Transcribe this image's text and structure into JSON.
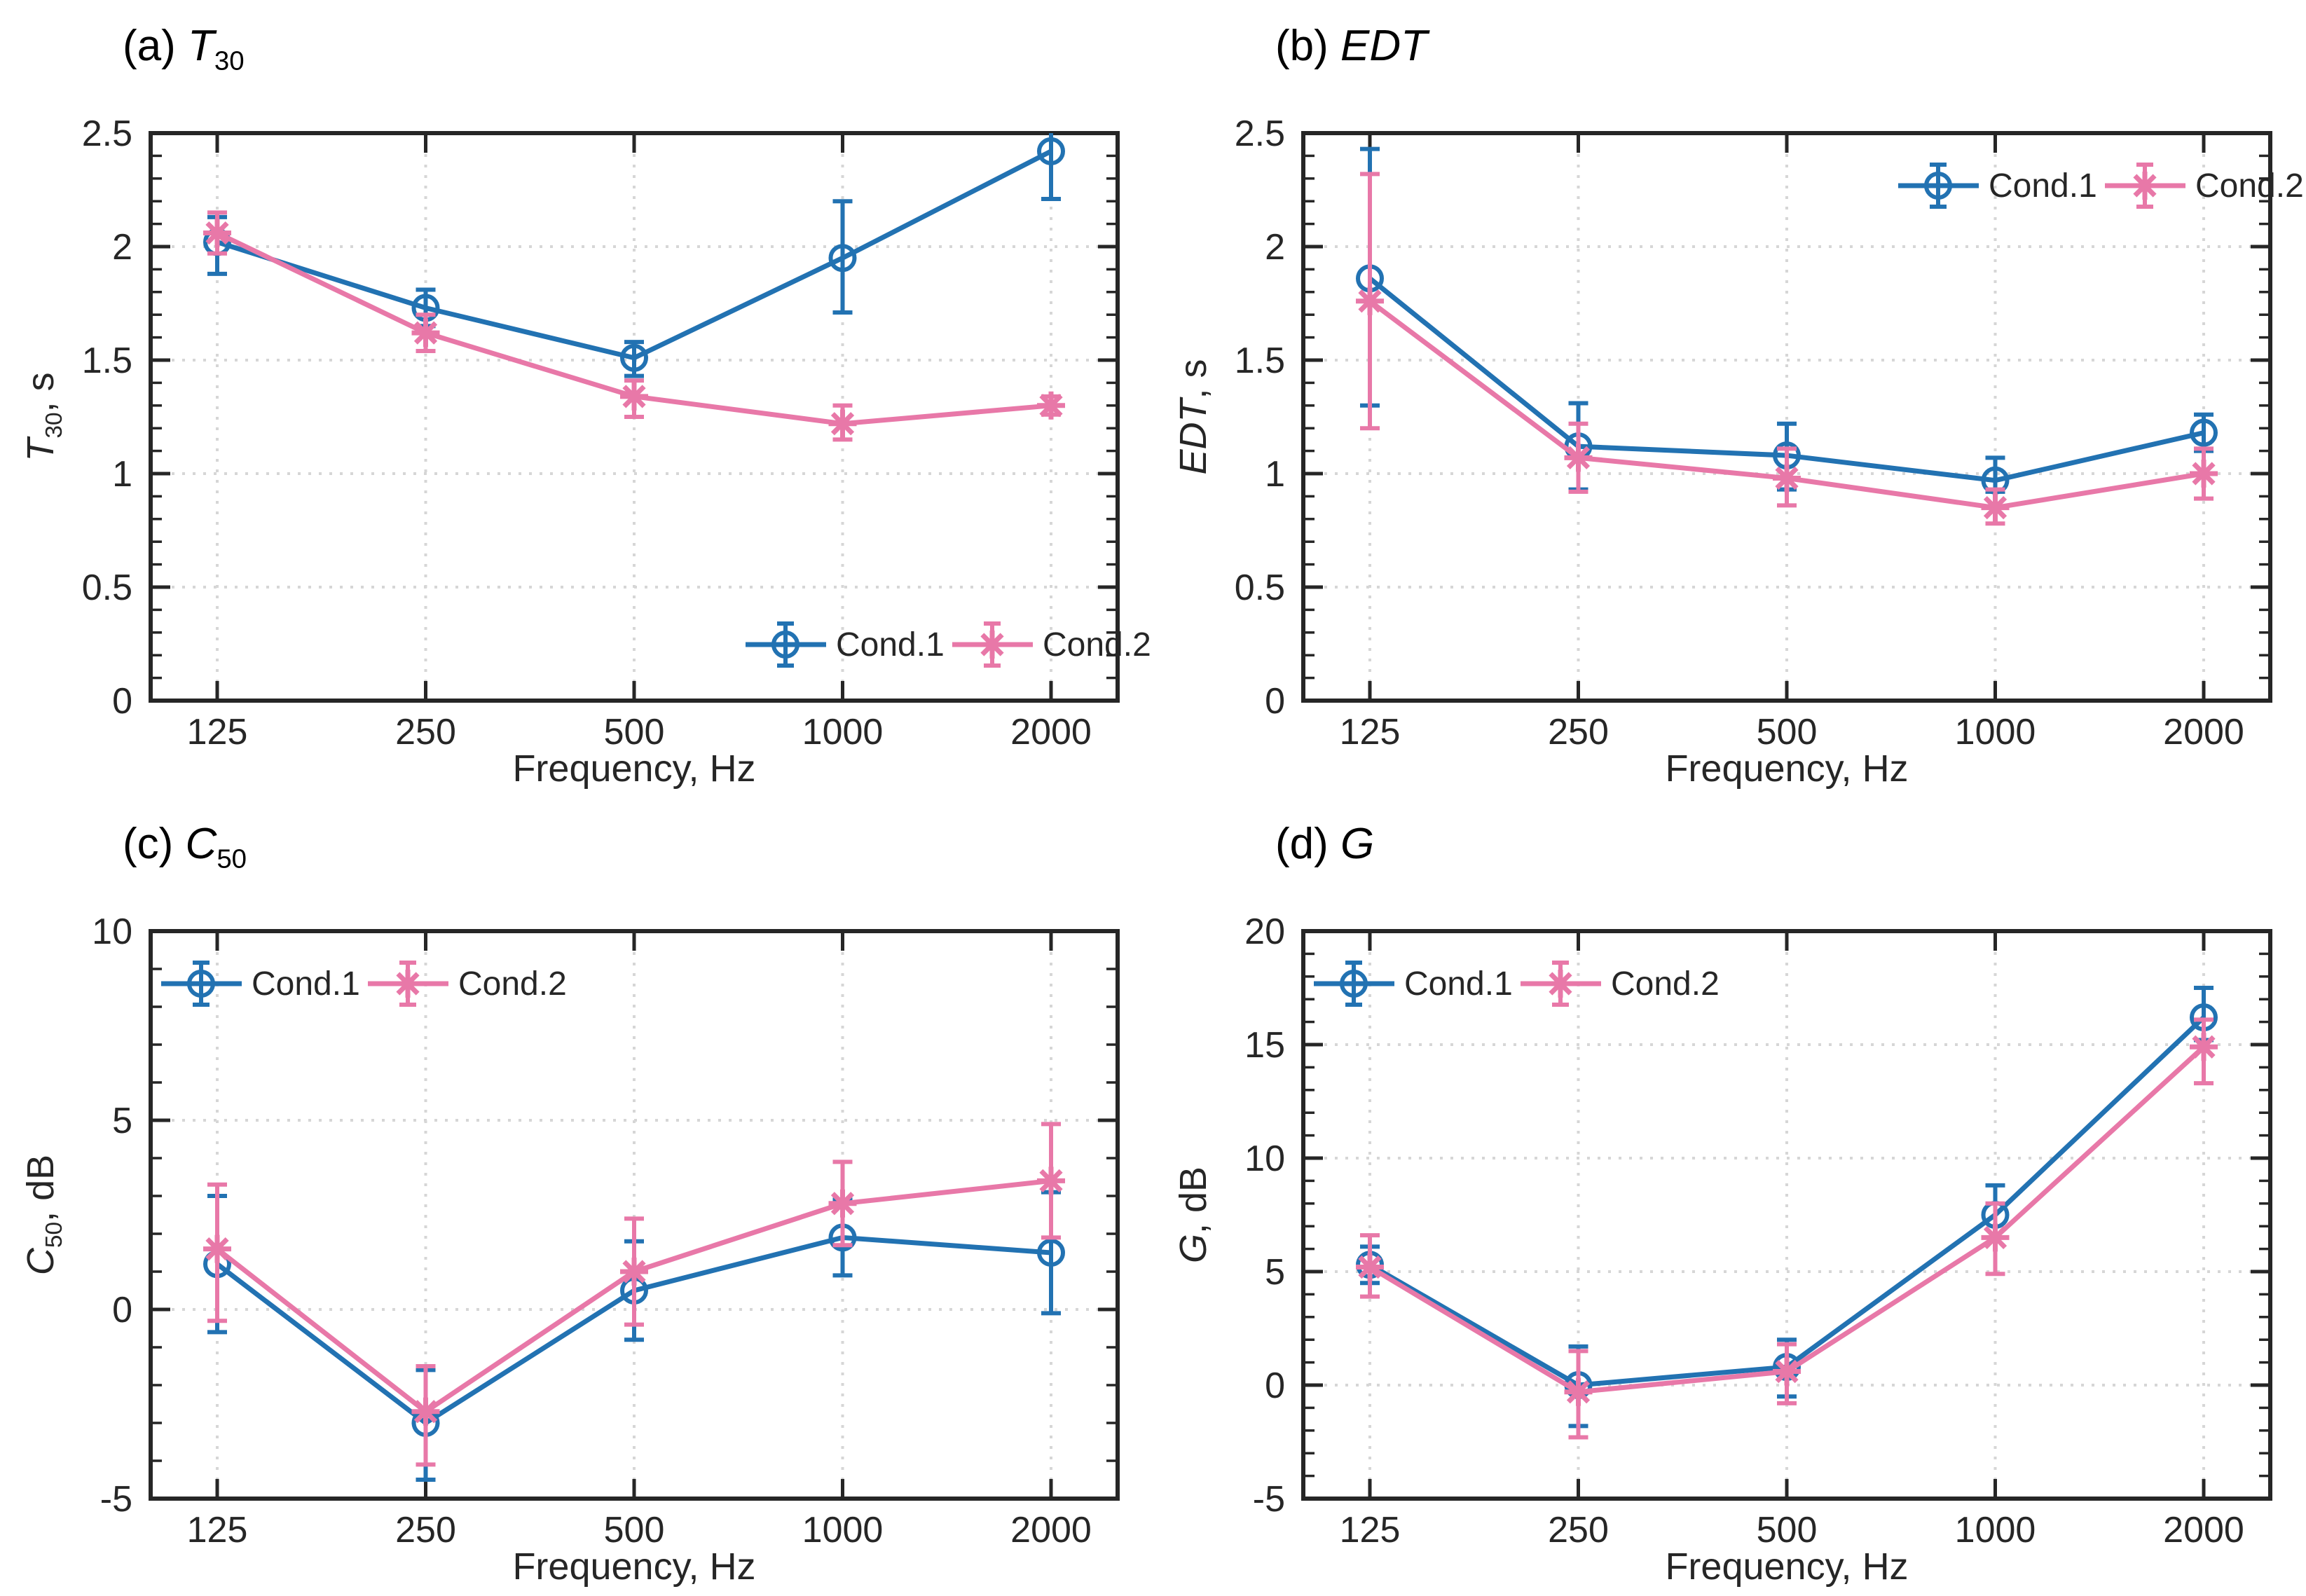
{
  "figure": {
    "colors": {
      "cond1": "#2272b2",
      "cond2": "#e878a8",
      "axis": "#262626",
      "grid": "#d6d6d6",
      "text": "#262626"
    },
    "frequency_ticks": [
      "125",
      "250",
      "500",
      "1000",
      "2000"
    ]
  },
  "chart_data": [
    {
      "id": "a",
      "type": "line",
      "title": {
        "prefix": "(a) ",
        "symbol": "T",
        "subscript": "30"
      },
      "ylabel": {
        "symbol": "T",
        "subscript": "30",
        "unit": ", s"
      },
      "xlabel": "Frequency, Hz",
      "categories": [
        "125",
        "250",
        "500",
        "1000",
        "2000"
      ],
      "ylim": [
        0,
        2.5
      ],
      "yticks": [
        0,
        0.5,
        1,
        1.5,
        2,
        2.5
      ],
      "yminor": 0.1,
      "grid": "dotted",
      "legend_pos": "bottom-right",
      "series": [
        {
          "name": "Cond.1",
          "marker": "circle",
          "color": "#2272b2",
          "values": [
            2.02,
            1.73,
            1.51,
            1.95,
            2.42
          ],
          "err_lo": [
            1.88,
            1.65,
            1.43,
            1.71,
            2.21
          ],
          "err_hi": [
            2.13,
            1.81,
            1.58,
            2.2,
            2.52
          ]
        },
        {
          "name": "Cond.2",
          "marker": "asterisk",
          "color": "#e878a8",
          "values": [
            2.06,
            1.62,
            1.34,
            1.22,
            1.3
          ],
          "err_lo": [
            1.97,
            1.54,
            1.25,
            1.15,
            1.26
          ],
          "err_hi": [
            2.15,
            1.7,
            1.41,
            1.3,
            1.34
          ]
        }
      ]
    },
    {
      "id": "b",
      "type": "line",
      "title": {
        "prefix": "(b) ",
        "symbol": "EDT",
        "subscript": ""
      },
      "ylabel": {
        "symbol": "EDT",
        "subscript": "",
        "unit": ", s"
      },
      "xlabel": "Frequency, Hz",
      "categories": [
        "125",
        "250",
        "500",
        "1000",
        "2000"
      ],
      "ylim": [
        0,
        2.5
      ],
      "yticks": [
        0,
        0.5,
        1,
        1.5,
        2,
        2.5
      ],
      "yminor": 0.1,
      "grid": "dotted",
      "legend_pos": "top-right",
      "series": [
        {
          "name": "Cond.1",
          "marker": "circle",
          "color": "#2272b2",
          "values": [
            1.86,
            1.12,
            1.08,
            0.97,
            1.18
          ],
          "err_lo": [
            1.3,
            0.93,
            0.93,
            0.92,
            1.1
          ],
          "err_hi": [
            2.43,
            1.31,
            1.22,
            1.07,
            1.26
          ]
        },
        {
          "name": "Cond.2",
          "marker": "asterisk",
          "color": "#e878a8",
          "values": [
            1.76,
            1.07,
            0.98,
            0.85,
            1.0
          ],
          "err_lo": [
            1.2,
            0.92,
            0.86,
            0.78,
            0.89
          ],
          "err_hi": [
            2.32,
            1.22,
            1.11,
            0.93,
            1.11
          ]
        }
      ]
    },
    {
      "id": "c",
      "type": "line",
      "title": {
        "prefix": "(c) ",
        "symbol": "C",
        "subscript": "50"
      },
      "ylabel": {
        "symbol": "C",
        "subscript": "50",
        "unit": ", dB"
      },
      "xlabel": "Frequency, Hz",
      "categories": [
        "125",
        "250",
        "500",
        "1000",
        "2000"
      ],
      "ylim": [
        -5,
        10
      ],
      "yticks": [
        -5,
        0,
        5,
        10
      ],
      "yminor": 1,
      "grid": "dotted",
      "legend_pos": "top-left",
      "series": [
        {
          "name": "Cond.1",
          "marker": "circle",
          "color": "#2272b2",
          "values": [
            1.2,
            -3.0,
            0.5,
            1.9,
            1.5
          ],
          "err_lo": [
            -0.6,
            -4.5,
            -0.8,
            0.9,
            -0.1
          ],
          "err_hi": [
            3.0,
            -1.6,
            1.8,
            2.9,
            3.1
          ]
        },
        {
          "name": "Cond.2",
          "marker": "asterisk",
          "color": "#e878a8",
          "values": [
            1.6,
            -2.7,
            1.0,
            2.8,
            3.4
          ],
          "err_lo": [
            -0.3,
            -4.1,
            -0.4,
            1.7,
            1.9
          ],
          "err_hi": [
            3.3,
            -1.5,
            2.4,
            3.9,
            4.9
          ]
        }
      ]
    },
    {
      "id": "d",
      "type": "line",
      "title": {
        "prefix": "(d) ",
        "symbol": "G",
        "subscript": ""
      },
      "ylabel": {
        "symbol": "G",
        "subscript": "",
        "unit": ", dB"
      },
      "xlabel": "Frequency, Hz",
      "categories": [
        "125",
        "250",
        "500",
        "1000",
        "2000"
      ],
      "ylim": [
        -5,
        20
      ],
      "yticks": [
        -5,
        0,
        5,
        10,
        15,
        20
      ],
      "yminor": 1,
      "grid": "dotted",
      "legend_pos": "top-left",
      "series": [
        {
          "name": "Cond.1",
          "marker": "circle",
          "color": "#2272b2",
          "values": [
            5.3,
            0.0,
            0.8,
            7.5,
            16.2
          ],
          "err_lo": [
            4.5,
            -1.8,
            -0.5,
            6.5,
            15.2
          ],
          "err_hi": [
            6.1,
            1.7,
            2.0,
            8.8,
            17.5
          ]
        },
        {
          "name": "Cond.2",
          "marker": "asterisk",
          "color": "#e878a8",
          "values": [
            5.2,
            -0.3,
            0.6,
            6.5,
            14.9
          ],
          "err_lo": [
            3.9,
            -2.3,
            -0.8,
            4.9,
            13.3
          ],
          "err_hi": [
            6.6,
            1.5,
            1.8,
            8.0,
            16.1
          ]
        }
      ]
    }
  ]
}
